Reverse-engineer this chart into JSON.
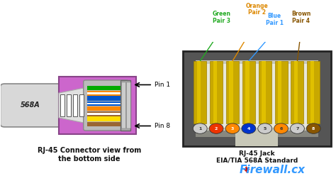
{
  "bg_color": "#ffffff",
  "title_left": "RJ-45 Connector view from\nthe bottom side",
  "title_right": "RJ-45 Jack\nEIA/TIA 568A Standard",
  "label_568A": "568A",
  "pin_labels": [
    "Pin 1",
    "Pin 8"
  ],
  "pin_numbers": [
    "1",
    "2",
    "3",
    "4",
    "5",
    "6",
    "7",
    "8"
  ],
  "pin_circle_colors": [
    "#cccccc",
    "#ee3300",
    "#ff8800",
    "#0033cc",
    "#cccccc",
    "#ff8800",
    "#cccccc",
    "#885500"
  ],
  "pin_text_colors": [
    "#333333",
    "#ffffff",
    "#ffffff",
    "#ffffff",
    "#333333",
    "#333333",
    "#333333",
    "#ffffff"
  ],
  "firewall_text": "Firewall.cx",
  "firewall_color": "#3399ff",
  "firewall_red": "#cc1111",
  "pair_info": [
    {
      "label": "Green\nPair 3",
      "color": "#22aa22",
      "pin_idx": 0
    },
    {
      "label": "Orange\nPair 2",
      "color": "#dd8800",
      "pin_idx": 2
    },
    {
      "label": "Blue\nPair 1",
      "color": "#3399ff",
      "pin_idx": 3
    },
    {
      "label": "Brown\nPair 4",
      "color": "#885500",
      "pin_idx": 6
    }
  ],
  "wire_cols": [
    [
      "#00aa00"
    ],
    [
      "#ff8800",
      "#ffffff"
    ],
    [
      "#0055cc"
    ],
    [
      "#0055cc",
      "#ffffff"
    ],
    [
      "#ff8800"
    ],
    [
      "#996633",
      "#ffffff"
    ],
    [
      "#ffdd00"
    ],
    [
      "#996633"
    ]
  ]
}
